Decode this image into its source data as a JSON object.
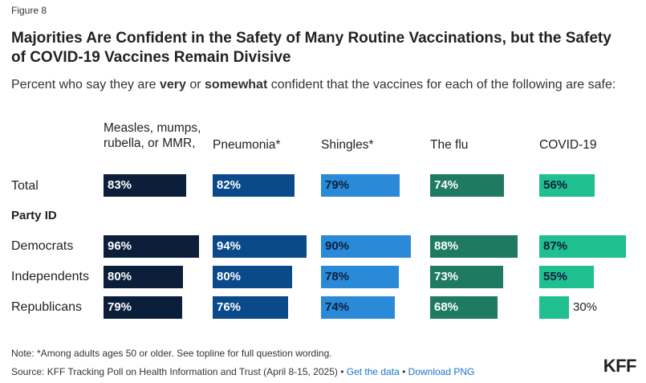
{
  "figure_label": "Figure 8",
  "title": "Majorities Are Confident in the Safety of Many Routine Vaccinations, but the Safety of COVID-19 Vaccines Remain Divisive",
  "subtitle": {
    "part1": "Percent who say they are ",
    "very": "very",
    "part2": " or ",
    "somewhat": "somewhat",
    "part3": " confident that the vaccines for each of the following are safe:"
  },
  "note": "Note: *Among adults ages 50 or older. See topline for full question wording.",
  "source": {
    "text": "Source: KFF Tracking Poll on Health Information and Trust (April 8-15, 2025) • ",
    "link1": "Get the data",
    "sep": " • ",
    "link2": "Download PNG"
  },
  "logo": "KFF",
  "section_label": "Party ID",
  "colors": {
    "measles": "#0c1f3a",
    "pneumonia": "#0a4a8a",
    "shingles": "#2b8ad8",
    "flu": "#1f7a62",
    "covid": "#1fbf8f"
  },
  "chart_data": {
    "type": "bar",
    "title": "Majorities Are Confident in the Safety of Many Routine Vaccinations, but the Safety of COVID-19 Vaccines Remain Divisive",
    "subtitle": "Percent who say they are very or somewhat confident that the vaccines for each of the following are safe:",
    "categories": [
      "Total",
      "Democrats",
      "Independents",
      "Republicans"
    ],
    "groups": {
      "Party ID": [
        "Democrats",
        "Independents",
        "Republicans"
      ]
    },
    "series": [
      {
        "name": "Measles, mumps, rubella, or MMR,",
        "values": [
          83,
          96,
          80,
          79
        ]
      },
      {
        "name": "Pneumonia*",
        "values": [
          82,
          94,
          80,
          76
        ]
      },
      {
        "name": "Shingles*",
        "values": [
          79,
          90,
          78,
          74
        ]
      },
      {
        "name": "The flu",
        "values": [
          74,
          88,
          73,
          68
        ]
      },
      {
        "name": "COVID-19",
        "values": [
          56,
          87,
          55,
          30
        ]
      }
    ],
    "value_suffix": "%",
    "xlim": [
      0,
      100
    ]
  }
}
